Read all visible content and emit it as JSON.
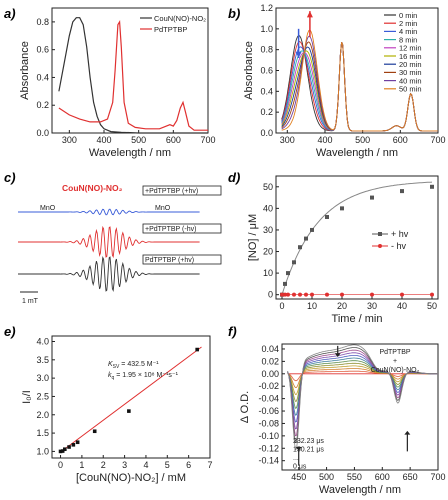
{
  "chart_data": [
    {
      "panel": "a",
      "type": "line",
      "xlabel": "Wavelength / nm",
      "ylabel": "Absorbance",
      "xlim": [
        250,
        700
      ],
      "ylim": [
        0,
        0.9
      ],
      "xticks": [
        "300",
        "400",
        "500",
        "600",
        "700"
      ],
      "yticks": [
        "0.0",
        "0.2",
        "0.4",
        "0.6",
        "0.8"
      ],
      "legend_position": "top-right",
      "grid": false,
      "series": [
        {
          "name": "CouN(NO)-NO₂",
          "color": "#333333",
          "x": [
            270,
            285,
            300,
            310,
            320,
            330,
            340,
            350,
            360,
            370,
            380,
            390,
            400,
            420,
            450,
            500,
            550,
            600,
            650,
            700
          ],
          "y": [
            0.3,
            0.5,
            0.7,
            0.8,
            0.83,
            0.83,
            0.78,
            0.62,
            0.4,
            0.22,
            0.12,
            0.06,
            0.03,
            0.01,
            0.005,
            0.0,
            0.0,
            0.0,
            0.0,
            0.0
          ]
        },
        {
          "name": "PdTPTBP",
          "color": "#e03030",
          "x": [
            270,
            300,
            330,
            360,
            390,
            410,
            425,
            432,
            440,
            445,
            450,
            458,
            470,
            490,
            520,
            560,
            590,
            600,
            610,
            620,
            628,
            635,
            645,
            660,
            700
          ],
          "y": [
            0.18,
            0.13,
            0.1,
            0.08,
            0.08,
            0.1,
            0.22,
            0.45,
            0.78,
            0.8,
            0.62,
            0.22,
            0.07,
            0.04,
            0.03,
            0.03,
            0.06,
            0.05,
            0.09,
            0.18,
            0.22,
            0.15,
            0.05,
            0.02,
            0.02
          ]
        }
      ]
    },
    {
      "panel": "b",
      "type": "line",
      "xlabel": "Wavelength / nm",
      "ylabel": "Absorbance",
      "xlim": [
        270,
        700
      ],
      "ylim": [
        0,
        1.2
      ],
      "xticks": [
        "300",
        "400",
        "500",
        "600",
        "700"
      ],
      "yticks": [
        "0.0",
        "0.2",
        "0.4",
        "0.6",
        "0.8",
        "1.0",
        "1.2"
      ],
      "legend_position": "top-right",
      "grid": false,
      "series": [
        {
          "name": "0 min",
          "color": "#333333"
        },
        {
          "name": "2 min",
          "color": "#e03030"
        },
        {
          "name": "4 min",
          "color": "#3a5cd8"
        },
        {
          "name": "8 min",
          "color": "#2cb0a8"
        },
        {
          "name": "12 min",
          "color": "#c040c0"
        },
        {
          "name": "16 min",
          "color": "#b0b000"
        },
        {
          "name": "20 min",
          "color": "#1a3a9a"
        },
        {
          "name": "30 min",
          "color": "#a04010"
        },
        {
          "name": "40 min",
          "color": "#7040a0"
        },
        {
          "name": "50 min",
          "color": "#e08020"
        }
      ]
    },
    {
      "panel": "c",
      "type": "line",
      "title": "CouN(NO)-NO₂",
      "labels": [
        "+PdTPTBP (+hv)",
        "+PdTPTBP (-hv)",
        "PdTPTBP (+hv)"
      ],
      "annotations": [
        "MnO",
        "MnO",
        "1 mT"
      ],
      "series": [
        {
          "name": "blue",
          "color": "#3a5cd8"
        },
        {
          "name": "red",
          "color": "#e03030"
        },
        {
          "name": "black",
          "color": "#333333"
        }
      ]
    },
    {
      "panel": "d",
      "type": "scatter",
      "xlabel": "Time / min",
      "ylabel": "[NO] / μM",
      "xlim": [
        -2,
        52
      ],
      "ylim": [
        -2,
        55
      ],
      "xticks": [
        "0",
        "10",
        "20",
        "30",
        "40",
        "50"
      ],
      "yticks": [
        "0",
        "10",
        "20",
        "30",
        "40",
        "50"
      ],
      "legend_position": "right",
      "grid": false,
      "series": [
        {
          "name": "+ hv",
          "color": "#555555",
          "x": [
            0,
            1,
            2,
            4,
            6,
            8,
            10,
            15,
            20,
            30,
            40,
            50
          ],
          "y": [
            0,
            5,
            10,
            15,
            22,
            26,
            30,
            36,
            40,
            45,
            48,
            50
          ]
        },
        {
          "name": "- hv",
          "color": "#e03030",
          "x": [
            0,
            1,
            2,
            4,
            6,
            8,
            10,
            15,
            20,
            30,
            40,
            50
          ],
          "y": [
            0,
            0,
            0,
            0,
            0,
            0,
            0,
            0,
            0,
            0,
            0,
            0
          ]
        }
      ]
    },
    {
      "panel": "e",
      "type": "scatter",
      "xlabel": "[CouN(NO)-NO₂] / mM",
      "ylabel": "I₀/I",
      "xlim": [
        -0.4,
        7.0
      ],
      "ylim": [
        0.82,
        4.15
      ],
      "xticks": [
        "0",
        "1",
        "2",
        "3",
        "4",
        "5",
        "6",
        "7"
      ],
      "yticks": [
        "1.0",
        "1.5",
        "2.0",
        "2.5",
        "3.0",
        "3.5",
        "4.0"
      ],
      "grid": false,
      "annotation_1": "K",
      "annotation_1_sub": "SV",
      "annotation_1_val": " = 432.5 M⁻¹",
      "annotation_2": "k",
      "annotation_2_sub": "q",
      "annotation_2_val": " = 1.95 × 10⁸ M⁻¹s⁻¹",
      "series": [
        {
          "name": "data",
          "color": "#111111",
          "x": [
            0,
            0.1,
            0.2,
            0.4,
            0.6,
            0.8,
            1.6,
            3.2,
            6.4
          ],
          "y": [
            1.0,
            1.01,
            1.06,
            1.12,
            1.18,
            1.25,
            1.55,
            2.1,
            3.78
          ]
        },
        {
          "name": "fit",
          "color": "#e03030",
          "x": [
            0,
            6.6
          ],
          "y": [
            0.98,
            3.85
          ]
        }
      ]
    },
    {
      "panel": "f",
      "type": "line",
      "xlabel": "Wavelength / nm",
      "ylabel": "Δ O.D.",
      "xlim": [
        420,
        700
      ],
      "ylim": [
        -0.155,
        0.048
      ],
      "xticks": [
        "450",
        "500",
        "550",
        "600",
        "650",
        "700"
      ],
      "yticks": [
        "-0.14",
        "-0.12",
        "-0.10",
        "-0.08",
        "-0.06",
        "-0.04",
        "-0.02",
        "0.00",
        "0.02",
        "0.04"
      ],
      "grid": false,
      "annotation_title_1": "PdTPTBP",
      "annotation_title_2": "+",
      "annotation_title_3": "CouN(NO)-NO₂",
      "times": [
        "232.23 μs",
        "150.21 μs",
        "...",
        "0 μs"
      ]
    }
  ],
  "panel_labels": [
    "a)",
    "b)",
    "c)",
    "d)",
    "e)",
    "f)"
  ]
}
